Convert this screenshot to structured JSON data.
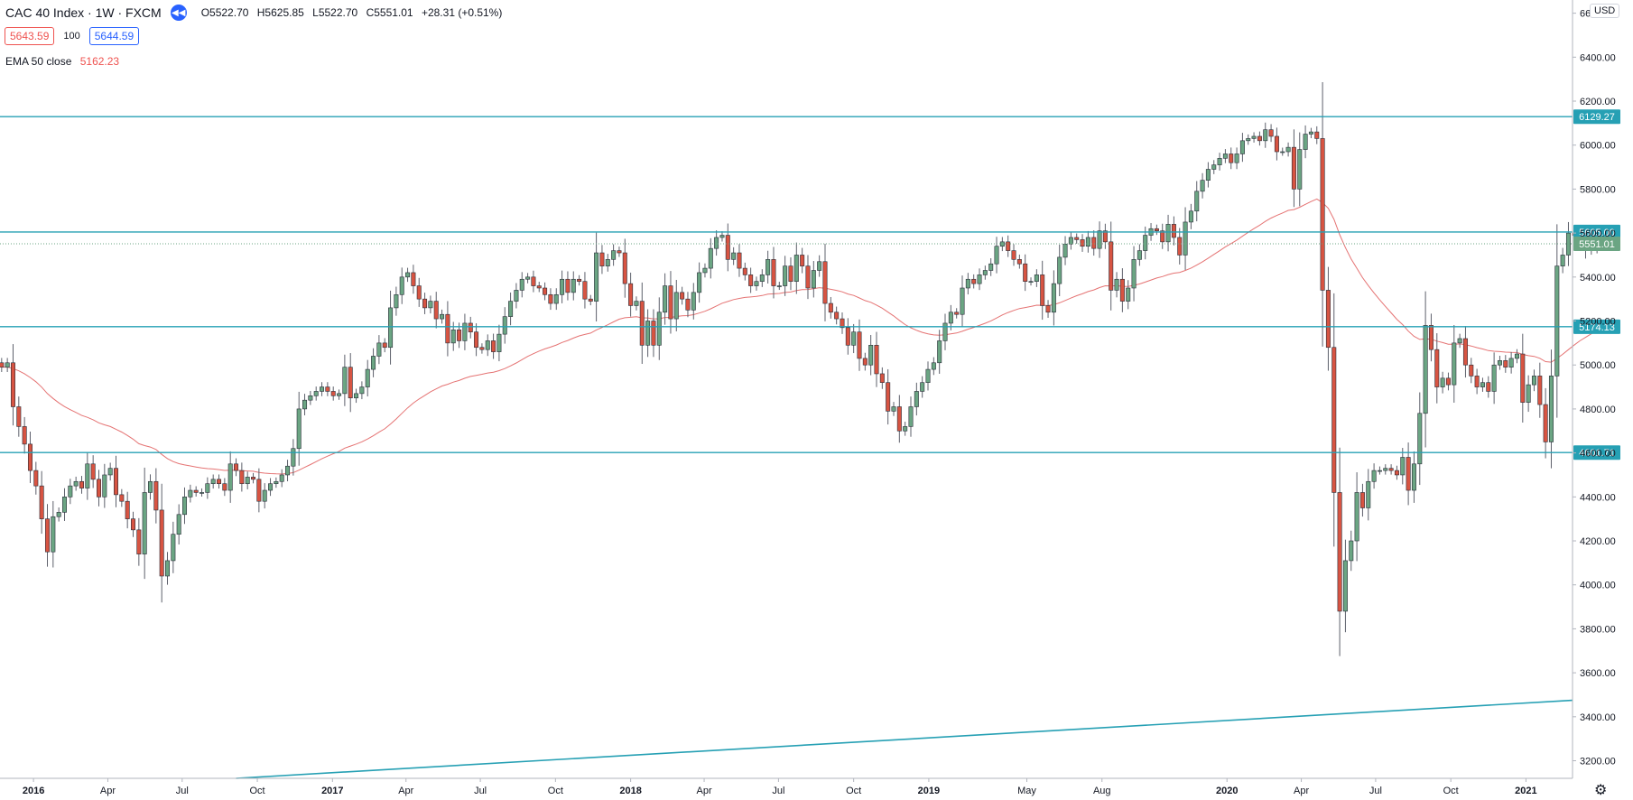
{
  "header": {
    "symbol": "CAC 40 Index · 1W · FXCM",
    "open": "O5522.70",
    "high": "H5625.85",
    "low": "L5522.70",
    "close": "C5551.01",
    "change": "+28.31 (+0.51%)"
  },
  "trade": {
    "sell": "5643.59",
    "spread": "100",
    "buy": "5644.59"
  },
  "indicator": {
    "label": "EMA 50 close",
    "value": "5162.23"
  },
  "currency": "USD",
  "colors": {
    "up": "#26a69a",
    "down": "#ef5350",
    "up_fill": "#6ba583",
    "down_fill": "#d75442",
    "ema": "#e57373",
    "level": "#26a0b4"
  },
  "chart_data": {
    "type": "candlestick",
    "title": "CAC 40 Index · 1W · FXCM",
    "ylim": [
      3120,
      6660
    ],
    "xlim": [
      "2015-11-21",
      "2021-02-27"
    ],
    "grid": false,
    "y_ticks": [
      "6600.00",
      "6400.00",
      "6200.00",
      "6000.00",
      "5800.00",
      "5600.00",
      "5400.00",
      "5200.00",
      "5000.00",
      "4800.00",
      "4600.00",
      "4400.00",
      "4200.00",
      "4000.00",
      "3800.00",
      "3600.00",
      "3400.00",
      "3200.00"
    ],
    "x_ticks": [
      {
        "label": "2016",
        "date": "2016-01-01"
      },
      {
        "label": "Apr",
        "date": "2016-04-01"
      },
      {
        "label": "Jul",
        "date": "2016-07-01"
      },
      {
        "label": "Oct",
        "date": "2016-10-01"
      },
      {
        "label": "2017",
        "date": "2017-01-01"
      },
      {
        "label": "Apr",
        "date": "2017-04-01"
      },
      {
        "label": "Jul",
        "date": "2017-07-01"
      },
      {
        "label": "Oct",
        "date": "2017-10-01"
      },
      {
        "label": "2018",
        "date": "2018-01-01"
      },
      {
        "label": "Apr",
        "date": "2018-04-01"
      },
      {
        "label": "Jul",
        "date": "2018-07-01"
      },
      {
        "label": "Oct",
        "date": "2018-10-01"
      },
      {
        "label": "2019",
        "date": "2019-01-01"
      },
      {
        "label": "May",
        "date": "2019-05-01"
      },
      {
        "label": "Aug",
        "date": "2019-08-01"
      },
      {
        "label": "2020",
        "date": "2020-01-01"
      },
      {
        "label": "Apr",
        "date": "2020-04-01"
      },
      {
        "label": "Jul",
        "date": "2020-07-01"
      },
      {
        "label": "Oct",
        "date": "2020-10-01"
      },
      {
        "label": "2021",
        "date": "2021-01-01"
      }
    ],
    "horizontal_levels": [
      {
        "value": 6129.27,
        "label": "6129.27"
      },
      {
        "value": 5605.0,
        "label": "5605.00"
      },
      {
        "value": 5174.13,
        "label": "5174.13"
      },
      {
        "value": 4601.71,
        "label": "4601.71"
      }
    ],
    "last_price": {
      "value": 5551.01,
      "label": "5551.01"
    },
    "trend_line": [
      {
        "date": "2016-09-05",
        "value": 3120
      },
      {
        "date": "2021-02-27",
        "value": 3475
      }
    ],
    "start_date": "2015-11-23",
    "closes": [
      4990,
      5010,
      4810,
      4720,
      4640,
      4520,
      4450,
      4300,
      4150,
      4310,
      4330,
      4400,
      4450,
      4470,
      4440,
      4550,
      4480,
      4400,
      4500,
      4530,
      4410,
      4380,
      4300,
      4250,
      4140,
      4420,
      4470,
      4340,
      4040,
      4110,
      4230,
      4320,
      4400,
      4430,
      4420,
      4420,
      4460,
      4480,
      4460,
      4430,
      4550,
      4520,
      4460,
      4490,
      4480,
      4380,
      4430,
      4460,
      4470,
      4500,
      4540,
      4620,
      4800,
      4840,
      4860,
      4880,
      4900,
      4880,
      4860,
      4870,
      4990,
      4850,
      4870,
      4900,
      4980,
      5040,
      5100,
      5080,
      5260,
      5320,
      5400,
      5420,
      5360,
      5300,
      5260,
      5290,
      5210,
      5230,
      5100,
      5160,
      5110,
      5190,
      5150,
      5080,
      5070,
      5110,
      5060,
      5140,
      5220,
      5290,
      5340,
      5390,
      5400,
      5360,
      5350,
      5320,
      5280,
      5320,
      5390,
      5330,
      5390,
      5380,
      5300,
      5290,
      5510,
      5450,
      5480,
      5520,
      5510,
      5370,
      5270,
      5290,
      5090,
      5200,
      5090,
      5240,
      5360,
      5210,
      5330,
      5300,
      5250,
      5330,
      5420,
      5440,
      5530,
      5580,
      5590,
      5480,
      5510,
      5440,
      5410,
      5360,
      5380,
      5410,
      5480,
      5360,
      5360,
      5450,
      5380,
      5500,
      5450,
      5350,
      5430,
      5470,
      5280,
      5240,
      5210,
      5170,
      5090,
      5150,
      5030,
      5000,
      5090,
      4960,
      4920,
      4790,
      4810,
      4700,
      4720,
      4810,
      4880,
      4920,
      4980,
      5010,
      5110,
      5190,
      5240,
      5230,
      5350,
      5390,
      5370,
      5410,
      5430,
      5460,
      5540,
      5560,
      5520,
      5480,
      5460,
      5380,
      5380,
      5410,
      5270,
      5240,
      5370,
      5490,
      5550,
      5580,
      5570,
      5540,
      5580,
      5530,
      5610,
      5560,
      5340,
      5390,
      5290,
      5350,
      5480,
      5520,
      5590,
      5620,
      5610,
      5560,
      5640,
      5580,
      5500,
      5650,
      5700,
      5790,
      5840,
      5890,
      5910,
      5940,
      5960,
      5920,
      5960,
      6020,
      6030,
      6040,
      6020,
      6070,
      6040,
      5970,
      5970,
      5990,
      5800,
      5980,
      6050,
      6060,
      6030,
      5340,
      5080,
      4420,
      3880,
      4110,
      4200,
      4420,
      4350,
      4470,
      4520,
      4520,
      4530,
      4520,
      4500,
      4580,
      4430,
      4550,
      4780,
      5180,
      5070,
      4900,
      4940,
      4910,
      5100,
      5120,
      5000,
      4950,
      4900,
      4920,
      4880,
      5000,
      5020,
      4990,
      5030,
      5050,
      4830,
      4910,
      4950,
      4820,
      4650,
      4950,
      5450,
      5500,
      5600,
      5590,
      5580,
      5520,
      5530,
      5551
    ]
  }
}
